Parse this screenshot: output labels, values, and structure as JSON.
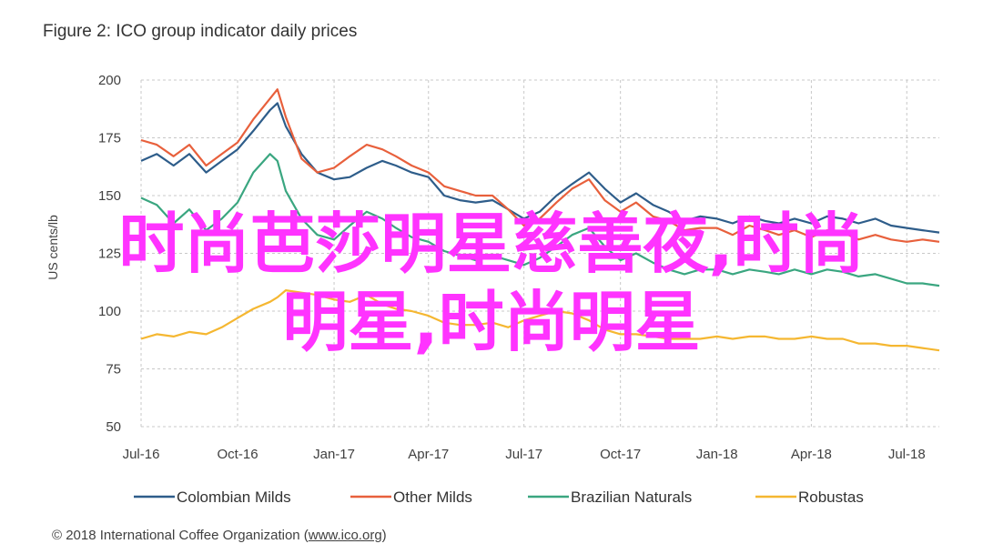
{
  "figure_title": "Figure 2: ICO group indicator daily prices",
  "copyright": {
    "prefix": "© 2018 International Coffee Organization (",
    "link": "www.ico.org",
    "suffix": ")"
  },
  "overlay_text": {
    "line1": "时尚芭莎明星慈善夜,时尚",
    "line2": "明星,时尚明星"
  },
  "colors": {
    "colombian_milds": "#2e5d8a",
    "other_milds": "#e8603c",
    "brazilian_naturals": "#3aa680",
    "robustas": "#f5b731",
    "overlay": "#ff33ff"
  },
  "chart_data": {
    "type": "line",
    "title": "Figure 2: ICO group indicator daily prices",
    "ylabel": "US cents/lb",
    "xlabel": "",
    "ylim": [
      50,
      200
    ],
    "yticks": [
      50,
      75,
      100,
      125,
      150,
      175,
      200
    ],
    "xlim": [
      "2016-07-01",
      "2018-08-01"
    ],
    "xticks": [
      {
        "date": "2016-07-01",
        "label": "Jul-16"
      },
      {
        "date": "2016-10-01",
        "label": "Oct-16"
      },
      {
        "date": "2017-01-01",
        "label": "Jan-17"
      },
      {
        "date": "2017-04-01",
        "label": "Apr-17"
      },
      {
        "date": "2017-07-01",
        "label": "Jul-17"
      },
      {
        "date": "2017-10-01",
        "label": "Oct-17"
      },
      {
        "date": "2018-01-01",
        "label": "Jan-18"
      },
      {
        "date": "2018-04-01",
        "label": "Apr-18"
      },
      {
        "date": "2018-07-01",
        "label": "Jul-18"
      }
    ],
    "grid": true,
    "legend_position": "bottom",
    "x": [
      "2016-07-01",
      "2016-07-16",
      "2016-08-01",
      "2016-08-16",
      "2016-09-01",
      "2016-09-16",
      "2016-10-01",
      "2016-10-16",
      "2016-11-01",
      "2016-11-08",
      "2016-11-16",
      "2016-12-01",
      "2016-12-16",
      "2017-01-01",
      "2017-01-16",
      "2017-02-01",
      "2017-02-16",
      "2017-03-01",
      "2017-03-16",
      "2017-04-01",
      "2017-04-16",
      "2017-05-01",
      "2017-05-16",
      "2017-06-01",
      "2017-06-16",
      "2017-07-01",
      "2017-07-16",
      "2017-08-01",
      "2017-08-16",
      "2017-09-01",
      "2017-09-16",
      "2017-10-01",
      "2017-10-16",
      "2017-11-01",
      "2017-11-16",
      "2017-12-01",
      "2017-12-16",
      "2018-01-01",
      "2018-01-16",
      "2018-02-01",
      "2018-02-16",
      "2018-03-01",
      "2018-03-16",
      "2018-04-01",
      "2018-04-16",
      "2018-05-01",
      "2018-05-16",
      "2018-06-01",
      "2018-06-16",
      "2018-07-01",
      "2018-07-16",
      "2018-08-01"
    ],
    "series": [
      {
        "name": "Colombian Milds",
        "color": "#2e5d8a",
        "values": [
          165,
          168,
          163,
          168,
          160,
          165,
          170,
          178,
          187,
          190,
          180,
          168,
          160,
          157,
          158,
          162,
          165,
          163,
          160,
          158,
          150,
          148,
          147,
          148,
          144,
          140,
          143,
          150,
          155,
          160,
          153,
          147,
          151,
          146,
          143,
          139,
          141,
          140,
          138,
          141,
          139,
          138,
          140,
          138,
          141,
          140,
          138,
          140,
          137,
          136,
          135,
          134
        ]
      },
      {
        "name": "Other Milds",
        "color": "#e8603c",
        "values": [
          174,
          172,
          167,
          172,
          163,
          168,
          173,
          183,
          192,
          196,
          184,
          166,
          160,
          162,
          167,
          172,
          170,
          167,
          163,
          160,
          154,
          152,
          150,
          150,
          144,
          137,
          140,
          147,
          153,
          157,
          148,
          143,
          147,
          141,
          139,
          135,
          136,
          136,
          133,
          137,
          135,
          133,
          135,
          132,
          135,
          134,
          131,
          133,
          131,
          130,
          131,
          130
        ]
      },
      {
        "name": "Brazilian Naturals",
        "color": "#3aa680",
        "values": [
          149,
          146,
          138,
          144,
          135,
          140,
          147,
          160,
          168,
          165,
          152,
          140,
          133,
          131,
          137,
          143,
          140,
          136,
          132,
          130,
          126,
          124,
          122,
          124,
          122,
          120,
          123,
          128,
          133,
          136,
          128,
          122,
          125,
          121,
          118,
          116,
          118,
          118,
          116,
          118,
          117,
          116,
          118,
          116,
          118,
          117,
          115,
          116,
          114,
          112,
          112,
          111
        ]
      },
      {
        "name": "Robustas",
        "color": "#f5b731",
        "values": [
          88,
          90,
          89,
          91,
          90,
          93,
          97,
          101,
          104,
          106,
          109,
          108,
          107,
          105,
          104,
          107,
          103,
          101,
          100,
          98,
          95,
          94,
          94,
          95,
          93,
          96,
          98,
          100,
          99,
          96,
          92,
          90,
          90,
          89,
          88,
          88,
          88,
          89,
          88,
          89,
          89,
          88,
          88,
          89,
          88,
          88,
          86,
          86,
          85,
          85,
          84,
          83
        ]
      }
    ]
  }
}
